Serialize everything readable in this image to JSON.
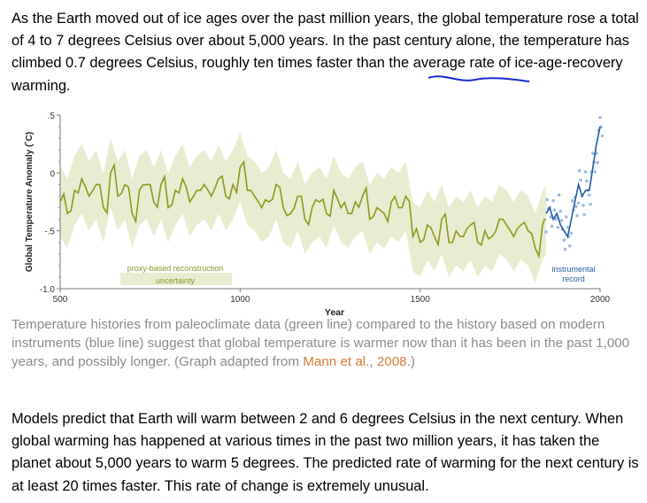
{
  "intro": {
    "before": "As the Earth moved out of ice ages over the past million years, the global temperature rose a total of 4 to 7 degrees Celsius over about 5,000 years. In the past century alone, the temperature has climbed 0.7 degrees Celsius, roughly ten times faster than the average rate of ice-age-recovery warming."
  },
  "caption": {
    "text": "Temperature histories from paleoclimate data (green line) compared to the history based on modern instruments (blue line) suggest that global temperature is warmer now than it has been in the past 1,000 years, and possibly longer. (Graph adapted from ",
    "link": "Mann et al.",
    "comma": ", ",
    "link2": "2008",
    "end": ".)"
  },
  "models": {
    "text": "Models predict that Earth will warm between 2 and 6 degrees Celsius in the next century. When global warming has happened at various times in the past two million years, it has taken the planet about 5,000 years to warm 5 degrees. The predicted rate of warming for the next century is at least 20 times faster. This rate of change is extremely unusual."
  },
  "chart_data": {
    "type": "line",
    "xlabel": "Year",
    "ylabel": "Global Temperature Anomaly (˚C)",
    "xlim": [
      500,
      2000
    ],
    "ylim": [
      -1.0,
      0.5
    ],
    "xticks": [
      500,
      1000,
      1500,
      2000
    ],
    "yticks": [
      ".5",
      "0",
      "-.5",
      "-1.0"
    ],
    "annotations": [
      {
        "lines": [
          "proxy-based reconstruction",
          "uncertainty"
        ],
        "color": "#8a9a2a"
      },
      {
        "lines": [
          "instrumental",
          "record"
        ],
        "color": "#2a5fa0"
      }
    ],
    "colors": {
      "proxy": "#8a9a1e",
      "band": "#e9ecd0",
      "instrumental": "#1f5aa6",
      "instrumental_points": "#9fbde0"
    },
    "series": [
      {
        "key": "proxy",
        "x": [
          500,
          520,
          540,
          560,
          580,
          600,
          620,
          640,
          660,
          680,
          700,
          720,
          740,
          760,
          780,
          800,
          820,
          840,
          860,
          880,
          900,
          920,
          940,
          960,
          980,
          1000,
          1020,
          1040,
          1060,
          1080,
          1100,
          1120,
          1140,
          1160,
          1180,
          1200,
          1220,
          1240,
          1260,
          1280,
          1300,
          1320,
          1340,
          1360,
          1380,
          1400,
          1420,
          1440,
          1460,
          1480,
          1500,
          1520,
          1540,
          1560,
          1580,
          1600,
          1620,
          1640,
          1660,
          1680,
          1700,
          1720,
          1740,
          1760,
          1780,
          1800,
          1820,
          1840,
          1850
        ],
        "values": [
          -0.25,
          -0.35,
          -0.15,
          -0.05,
          -0.2,
          -0.1,
          -0.3,
          0.0,
          -0.2,
          -0.1,
          -0.35,
          -0.15,
          -0.1,
          -0.25,
          -0.1,
          -0.3,
          -0.15,
          -0.05,
          -0.25,
          -0.15,
          -0.1,
          -0.2,
          -0.05,
          -0.2,
          -0.1,
          0.05,
          -0.15,
          -0.2,
          -0.3,
          -0.25,
          -0.1,
          -0.3,
          -0.35,
          -0.2,
          -0.4,
          -0.3,
          -0.25,
          -0.35,
          -0.15,
          -0.3,
          -0.35,
          -0.25,
          -0.2,
          -0.4,
          -0.3,
          -0.35,
          -0.25,
          -0.3,
          -0.2,
          -0.55,
          -0.6,
          -0.45,
          -0.55,
          -0.4,
          -0.6,
          -0.5,
          -0.55,
          -0.45,
          -0.6,
          -0.5,
          -0.55,
          -0.4,
          -0.45,
          -0.55,
          -0.45,
          -0.5,
          -0.65,
          -0.45,
          -0.4
        ],
        "band_half_width": 0.3
      },
      {
        "key": "instrumental",
        "x": [
          1850,
          1860,
          1870,
          1880,
          1890,
          1900,
          1910,
          1920,
          1930,
          1940,
          1950,
          1960,
          1970,
          1980,
          1990,
          2000
        ],
        "values": [
          -0.35,
          -0.3,
          -0.4,
          -0.35,
          -0.45,
          -0.5,
          -0.55,
          -0.4,
          -0.25,
          -0.1,
          -0.2,
          -0.15,
          -0.15,
          0.05,
          0.25,
          0.4
        ]
      }
    ]
  }
}
